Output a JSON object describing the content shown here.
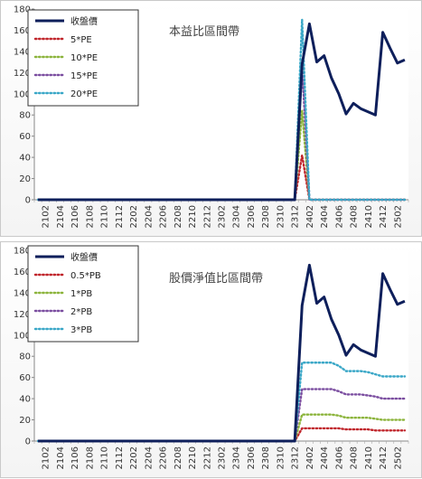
{
  "chart_data": [
    {
      "type": "line",
      "title": "本益比區間帶",
      "categories": [
        "2101",
        "2102",
        "2103",
        "2104",
        "2105",
        "2106",
        "2107",
        "2108",
        "2109",
        "2110",
        "2111",
        "2112",
        "2201",
        "2202",
        "2203",
        "2204",
        "2205",
        "2206",
        "2207",
        "2208",
        "2209",
        "2210",
        "2211",
        "2212",
        "2301",
        "2302",
        "2303",
        "2304",
        "2305",
        "2306",
        "2307",
        "2308",
        "2309",
        "2310",
        "2311",
        "2312",
        "2401",
        "2402",
        "2403",
        "2404",
        "2405",
        "2406",
        "2407",
        "2408",
        "2409",
        "2410",
        "2411",
        "2412",
        "2501",
        "2502",
        "2503"
      ],
      "tick_labels": [
        "2102",
        "2104",
        "2106",
        "2108",
        "2110",
        "2112",
        "2202",
        "2204",
        "2206",
        "2208",
        "2210",
        "2212",
        "2302",
        "2304",
        "2306",
        "2308",
        "2310",
        "2312",
        "2402",
        "2404",
        "2406",
        "2408",
        "2410",
        "2412",
        "2502"
      ],
      "ylim": [
        0,
        180
      ],
      "yticks": [
        0,
        20,
        40,
        60,
        80,
        100,
        120,
        140,
        160,
        180
      ],
      "legend_position": "top-left",
      "series": [
        {
          "name": "收盤價",
          "color": "#0e1f5b",
          "style": "solid",
          "values": [
            0,
            0,
            0,
            0,
            0,
            0,
            0,
            0,
            0,
            0,
            0,
            0,
            0,
            0,
            0,
            0,
            0,
            0,
            0,
            0,
            0,
            0,
            0,
            0,
            0,
            0,
            0,
            0,
            0,
            0,
            0,
            0,
            0,
            0,
            0,
            0,
            128,
            166,
            130,
            136,
            115,
            100,
            81,
            91,
            86,
            83,
            80,
            158,
            143,
            129,
            132
          ]
        },
        {
          "name": "5*PE",
          "color": "#c0262c",
          "style": "dotted",
          "values": [
            0,
            0,
            0,
            0,
            0,
            0,
            0,
            0,
            0,
            0,
            0,
            0,
            0,
            0,
            0,
            0,
            0,
            0,
            0,
            0,
            0,
            0,
            0,
            0,
            0,
            0,
            0,
            0,
            0,
            0,
            0,
            0,
            0,
            0,
            0,
            0,
            42,
            0,
            0,
            0,
            0,
            0,
            0,
            0,
            0,
            0,
            0,
            0,
            0,
            0,
            0
          ]
        },
        {
          "name": "10*PE",
          "color": "#8cb43c",
          "style": "dotted",
          "values": [
            0,
            0,
            0,
            0,
            0,
            0,
            0,
            0,
            0,
            0,
            0,
            0,
            0,
            0,
            0,
            0,
            0,
            0,
            0,
            0,
            0,
            0,
            0,
            0,
            0,
            0,
            0,
            0,
            0,
            0,
            0,
            0,
            0,
            0,
            0,
            0,
            84,
            0,
            0,
            0,
            0,
            0,
            0,
            0,
            0,
            0,
            0,
            0,
            0,
            0,
            0
          ]
        },
        {
          "name": "15*PE",
          "color": "#7b4ea0",
          "style": "dotted",
          "values": [
            0,
            0,
            0,
            0,
            0,
            0,
            0,
            0,
            0,
            0,
            0,
            0,
            0,
            0,
            0,
            0,
            0,
            0,
            0,
            0,
            0,
            0,
            0,
            0,
            0,
            0,
            0,
            0,
            0,
            0,
            0,
            0,
            0,
            0,
            0,
            0,
            126,
            0,
            0,
            0,
            0,
            0,
            0,
            0,
            0,
            0,
            0,
            0,
            0,
            0,
            0
          ]
        },
        {
          "name": "20*PE",
          "color": "#3aa7c7",
          "style": "dotted",
          "values": [
            0,
            0,
            0,
            0,
            0,
            0,
            0,
            0,
            0,
            0,
            0,
            0,
            0,
            0,
            0,
            0,
            0,
            0,
            0,
            0,
            0,
            0,
            0,
            0,
            0,
            0,
            0,
            0,
            0,
            0,
            0,
            0,
            0,
            0,
            0,
            0,
            170,
            0,
            0,
            0,
            0,
            0,
            0,
            0,
            0,
            0,
            0,
            0,
            0,
            0,
            0
          ]
        }
      ]
    },
    {
      "type": "line",
      "title": "股價淨值比區間帶",
      "categories": [
        "2101",
        "2102",
        "2103",
        "2104",
        "2105",
        "2106",
        "2107",
        "2108",
        "2109",
        "2110",
        "2111",
        "2112",
        "2201",
        "2202",
        "2203",
        "2204",
        "2205",
        "2206",
        "2207",
        "2208",
        "2209",
        "2210",
        "2211",
        "2212",
        "2301",
        "2302",
        "2303",
        "2304",
        "2305",
        "2306",
        "2307",
        "2308",
        "2309",
        "2310",
        "2311",
        "2312",
        "2401",
        "2402",
        "2403",
        "2404",
        "2405",
        "2406",
        "2407",
        "2408",
        "2409",
        "2410",
        "2411",
        "2412",
        "2501",
        "2502",
        "2503"
      ],
      "tick_labels": [
        "2102",
        "2104",
        "2106",
        "2108",
        "2110",
        "2112",
        "2202",
        "2204",
        "2206",
        "2208",
        "2210",
        "2212",
        "2302",
        "2304",
        "2306",
        "2308",
        "2310",
        "2312",
        "2402",
        "2404",
        "2406",
        "2408",
        "2410",
        "2412",
        "2502"
      ],
      "ylim": [
        0,
        180
      ],
      "yticks": [
        0,
        20,
        40,
        60,
        80,
        100,
        120,
        140,
        160,
        180
      ],
      "legend_position": "top-left",
      "series": [
        {
          "name": "收盤價",
          "color": "#0e1f5b",
          "style": "solid",
          "values": [
            0,
            0,
            0,
            0,
            0,
            0,
            0,
            0,
            0,
            0,
            0,
            0,
            0,
            0,
            0,
            0,
            0,
            0,
            0,
            0,
            0,
            0,
            0,
            0,
            0,
            0,
            0,
            0,
            0,
            0,
            0,
            0,
            0,
            0,
            0,
            0,
            128,
            166,
            130,
            136,
            115,
            100,
            81,
            91,
            86,
            83,
            80,
            158,
            143,
            129,
            132
          ]
        },
        {
          "name": "0.5*PB",
          "color": "#c0262c",
          "style": "dotted",
          "values": [
            0,
            0,
            0,
            0,
            0,
            0,
            0,
            0,
            0,
            0,
            0,
            0,
            0,
            0,
            0,
            0,
            0,
            0,
            0,
            0,
            0,
            0,
            0,
            0,
            0,
            0,
            0,
            0,
            0,
            0,
            0,
            0,
            0,
            0,
            0,
            0,
            12,
            12,
            12,
            12,
            12,
            12,
            11,
            11,
            11,
            11,
            10,
            10,
            10,
            10,
            10
          ]
        },
        {
          "name": "1*PB",
          "color": "#8cb43c",
          "style": "dotted",
          "values": [
            0,
            0,
            0,
            0,
            0,
            0,
            0,
            0,
            0,
            0,
            0,
            0,
            0,
            0,
            0,
            0,
            0,
            0,
            0,
            0,
            0,
            0,
            0,
            0,
            0,
            0,
            0,
            0,
            0,
            0,
            0,
            0,
            0,
            0,
            0,
            0,
            25,
            25,
            25,
            25,
            25,
            24,
            22,
            22,
            22,
            22,
            21,
            20,
            20,
            20,
            20
          ]
        },
        {
          "name": "2*PB",
          "color": "#7b4ea0",
          "style": "dotted",
          "values": [
            0,
            0,
            0,
            0,
            0,
            0,
            0,
            0,
            0,
            0,
            0,
            0,
            0,
            0,
            0,
            0,
            0,
            0,
            0,
            0,
            0,
            0,
            0,
            0,
            0,
            0,
            0,
            0,
            0,
            0,
            0,
            0,
            0,
            0,
            0,
            0,
            49,
            49,
            49,
            49,
            49,
            47,
            44,
            44,
            44,
            43,
            42,
            40,
            40,
            40,
            40
          ]
        },
        {
          "name": "3*PB",
          "color": "#3aa7c7",
          "style": "dotted",
          "values": [
            0,
            0,
            0,
            0,
            0,
            0,
            0,
            0,
            0,
            0,
            0,
            0,
            0,
            0,
            0,
            0,
            0,
            0,
            0,
            0,
            0,
            0,
            0,
            0,
            0,
            0,
            0,
            0,
            0,
            0,
            0,
            0,
            0,
            0,
            0,
            0,
            74,
            74,
            74,
            74,
            74,
            71,
            66,
            66,
            66,
            65,
            63,
            61,
            61,
            61,
            61
          ]
        }
      ]
    }
  ]
}
